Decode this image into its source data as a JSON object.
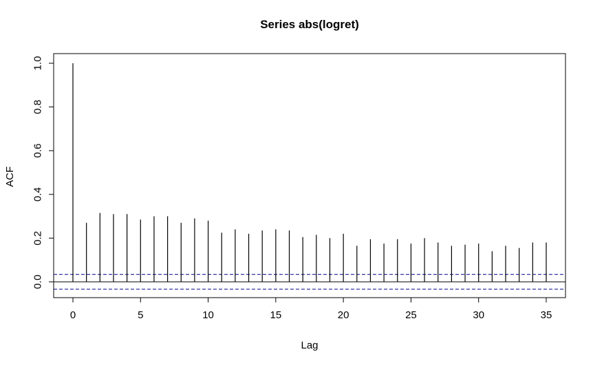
{
  "chart_data": {
    "type": "bar",
    "title": "Series  abs(logret)",
    "xlabel": "Lag",
    "ylabel": "ACF",
    "xlim": [
      0,
      35
    ],
    "ylim": [
      -0.07,
      1.0
    ],
    "x_ticks": [
      0,
      5,
      10,
      15,
      20,
      25,
      30,
      35
    ],
    "y_ticks": [
      0.0,
      0.2,
      0.4,
      0.6,
      0.8,
      1.0
    ],
    "y_tick_labels": [
      "0.0",
      "0.2",
      "0.4",
      "0.6",
      "0.8",
      "1.0"
    ],
    "grid": false,
    "colors": {
      "bars": "#000000",
      "confidence": "#00008B",
      "zero_line": "#000000"
    },
    "confidence_bounds": [
      0.034,
      -0.034
    ],
    "series": [
      {
        "lags": [
          0,
          1,
          2,
          3,
          4,
          5,
          6,
          7,
          8,
          9,
          10,
          11,
          12,
          13,
          14,
          15,
          16,
          17,
          18,
          19,
          20,
          21,
          22,
          23,
          24,
          25,
          26,
          27,
          28,
          29,
          30,
          31,
          32,
          33,
          34,
          35
        ],
        "values": [
          1.0,
          0.27,
          0.315,
          0.31,
          0.31,
          0.285,
          0.3,
          0.3,
          0.27,
          0.29,
          0.28,
          0.225,
          0.24,
          0.22,
          0.235,
          0.24,
          0.235,
          0.205,
          0.215,
          0.2,
          0.22,
          0.165,
          0.195,
          0.175,
          0.195,
          0.175,
          0.2,
          0.18,
          0.165,
          0.17,
          0.175,
          0.14,
          0.165,
          0.155,
          0.18,
          0.18
        ]
      }
    ]
  }
}
